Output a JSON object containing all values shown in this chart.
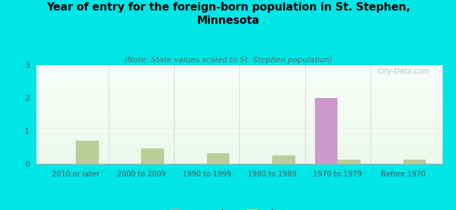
{
  "title": "Year of entry for the foreign-born population in St. Stephen,\nMinnesota",
  "subtitle": "(Note: State values scaled to St. Stephen population)",
  "categories": [
    "2010 or later",
    "2000 to 2009",
    "1990 to 1999",
    "1980 to 1989",
    "1970 to 1979",
    "Before 1970"
  ],
  "st_stephen_values": [
    0,
    0,
    0,
    0,
    2,
    0
  ],
  "minnesota_values": [
    0.7,
    0.47,
    0.32,
    0.25,
    0.12,
    0.12
  ],
  "st_stephen_color": "#cc99cc",
  "minnesota_color": "#bbcc99",
  "background_color": "#00e5e5",
  "ylim": [
    0,
    3
  ],
  "yticks": [
    0,
    1,
    2,
    3
  ],
  "bar_width": 0.35,
  "title_fontsize": 11,
  "subtitle_fontsize": 8,
  "watermark": "City-Data.com"
}
